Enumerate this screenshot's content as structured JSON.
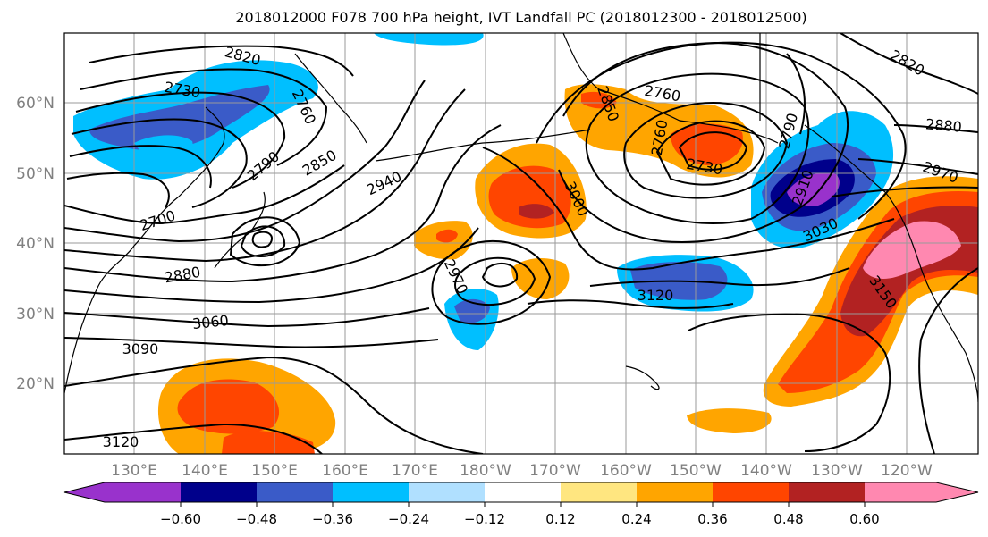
{
  "title": "2018012000 F078 700 hPa height, IVT Landfall PC (2018012300 - 2018012500)",
  "axes": {
    "lat_labels": [
      "60°N",
      "50°N",
      "40°N",
      "30°N",
      "20°N"
    ],
    "lon_labels": [
      "130°E",
      "140°E",
      "150°E",
      "160°E",
      "170°E",
      "180°W",
      "170°W",
      "160°W",
      "150°W",
      "140°W",
      "130°W",
      "120°W"
    ],
    "grid": true
  },
  "colorbar": {
    "ticks": [
      "−0.60",
      "−0.48",
      "−0.36",
      "−0.24",
      "−0.12",
      "0.12",
      "0.24",
      "0.36",
      "0.48",
      "0.60"
    ],
    "colors": [
      "#9932CC",
      "#00008B",
      "#3A5BC8",
      "#00BFFF",
      "#B0E0FF",
      "#FFFFFF",
      "#FFE680",
      "#FFA500",
      "#FF4500",
      "#B22222",
      "#FF88B0"
    ]
  },
  "contour_labels": [
    {
      "text": "2820"
    },
    {
      "text": "2730"
    },
    {
      "text": "2760"
    },
    {
      "text": "2790"
    },
    {
      "text": "2850"
    },
    {
      "text": "2940"
    },
    {
      "text": "2700"
    },
    {
      "text": "2880"
    },
    {
      "text": "3060"
    },
    {
      "text": "3090"
    },
    {
      "text": "3120"
    },
    {
      "text": "2970"
    },
    {
      "text": "3000"
    },
    {
      "text": "2850"
    },
    {
      "text": "2760"
    },
    {
      "text": "2760"
    },
    {
      "text": "2730"
    },
    {
      "text": "2910"
    },
    {
      "text": "3030"
    },
    {
      "text": "3120"
    },
    {
      "text": "3150"
    },
    {
      "text": "2820"
    },
    {
      "text": "2880"
    },
    {
      "text": "2970"
    },
    {
      "text": "2790"
    }
  ]
}
